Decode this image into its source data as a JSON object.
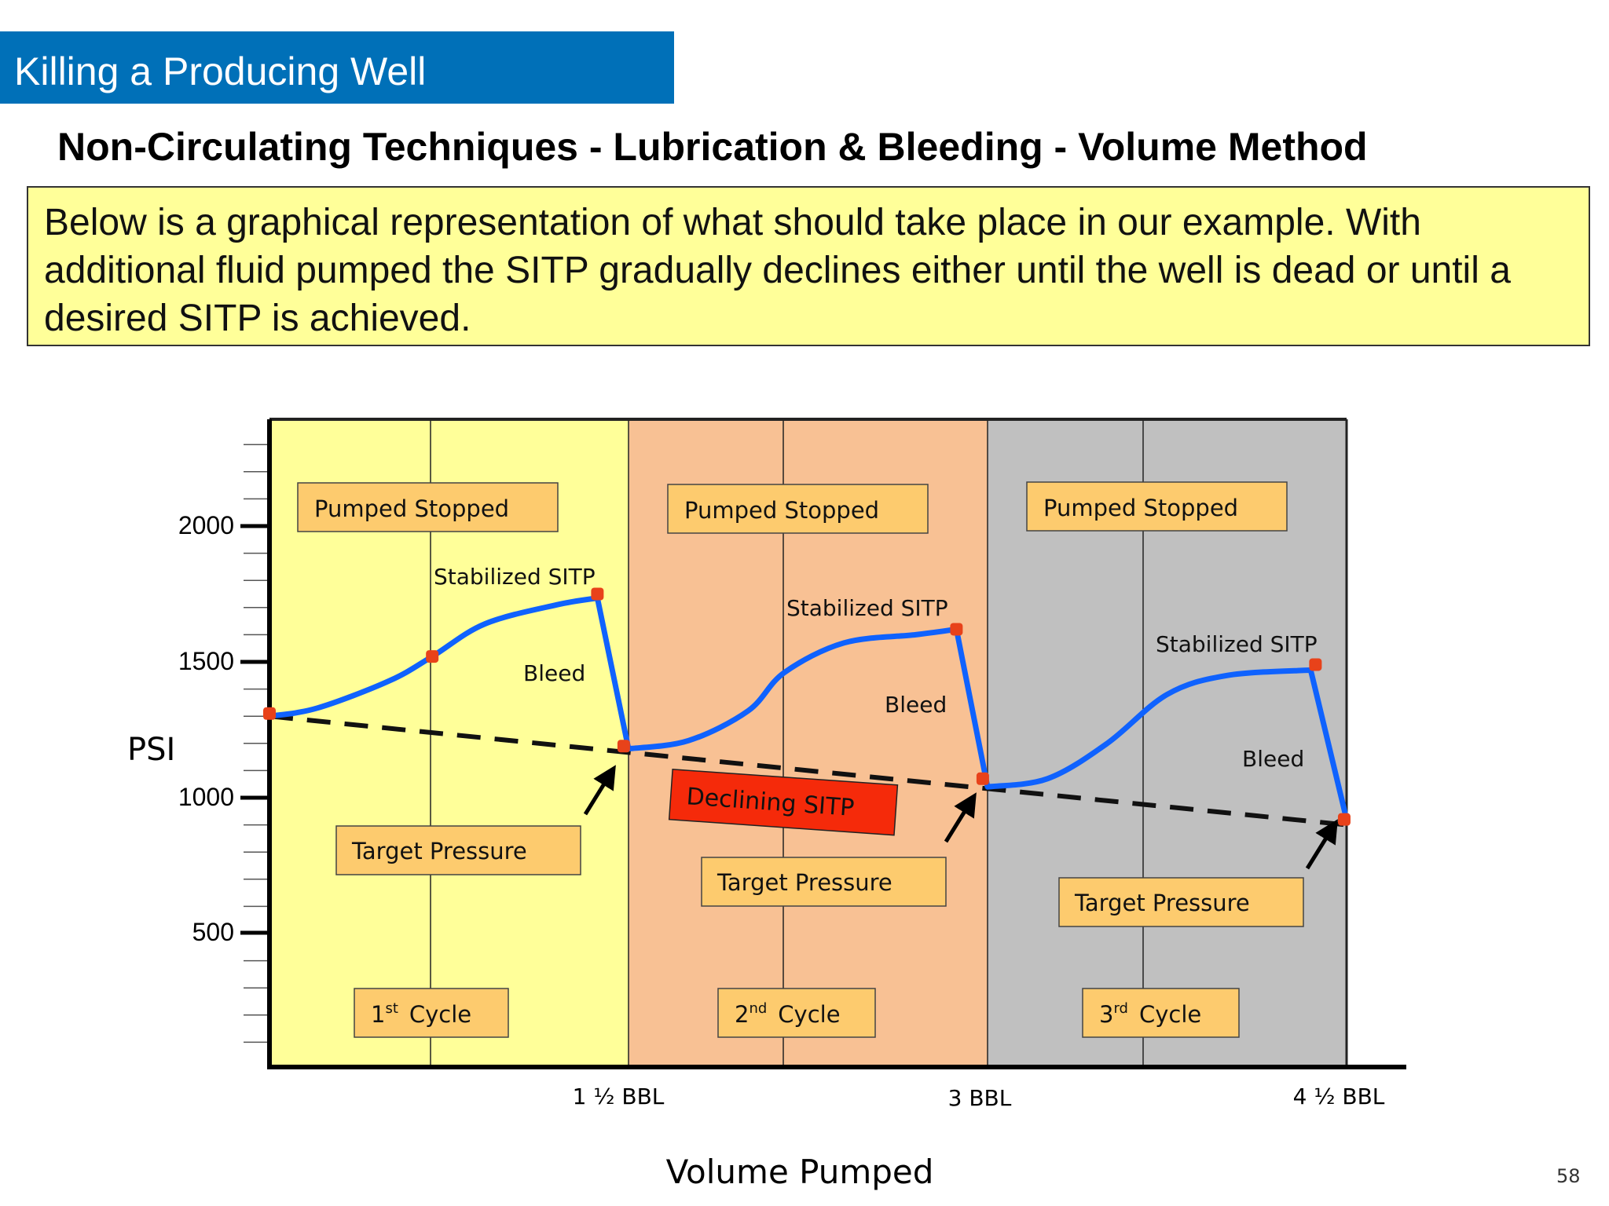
{
  "header": {
    "banner_title": "Killing a Producing Well",
    "subtitle": "Non-Circulating Techniques - Lubrication & Bleeding - Volume Method"
  },
  "intro_text": "Below is a graphical representation of what should take place in our example. With additional fluid pumped the SITP gradually declines either until the well is dead or until a desired SITP is achieved.",
  "colors": {
    "banner": "#0070b8",
    "intro_bg": "#ffff99",
    "cycle1_bg": "#ffff99",
    "cycle2_bg": "#f8c194",
    "cycle3_bg": "#c0c0c0",
    "label_bg": "#fdcb6e",
    "curve": "#0f62fe",
    "marker": "#e8421a",
    "declining_bg": "#f52a0a"
  },
  "chart_data": {
    "type": "line",
    "ylabel": "PSI",
    "xlabel": "Volume Pumped",
    "yticks": [
      2000,
      1500,
      1000,
      500
    ],
    "xticks": [
      "1 ½  BBL",
      "3  BBL",
      "4 ½  BBL"
    ],
    "ylim": [
      0,
      2400
    ],
    "xlim": [
      0,
      4.5
    ],
    "series": [
      {
        "type": "curve",
        "x": [
          0,
          0.2,
          0.5,
          0.68,
          0.9,
          1.2,
          1.37,
          1.5,
          1.75,
          2.0,
          2.15,
          2.4,
          2.7,
          2.87,
          3.0,
          3.25,
          3.5,
          3.75,
          4.0,
          4.35,
          4.5
        ],
        "y": [
          1300,
          1330,
          1430,
          1520,
          1640,
          1710,
          1735,
          1180,
          1210,
          1320,
          1460,
          1570,
          1600,
          1620,
          1040,
          1070,
          1200,
          1380,
          1450,
          1470,
          920
        ]
      },
      {
        "type": "dashed",
        "x": [
          0,
          4.5
        ],
        "y": [
          1300,
          900
        ]
      }
    ],
    "markers": [
      {
        "x": 0,
        "y": 1310
      },
      {
        "x": 0.68,
        "y": 1520
      },
      {
        "x": 1.37,
        "y": 1750
      },
      {
        "x": 1.48,
        "y": 1190
      },
      {
        "x": 2.87,
        "y": 1620
      },
      {
        "x": 2.98,
        "y": 1070
      },
      {
        "x": 4.37,
        "y": 1490
      },
      {
        "x": 4.49,
        "y": 920
      }
    ],
    "cycles": [
      {
        "label_base": "1",
        "label_sup": "st",
        "label_rest": "Cycle",
        "pumped_stopped": "Pumped Stopped",
        "stabilized": "Stabilized SITP",
        "bleed": "Bleed",
        "target": "Target Pressure"
      },
      {
        "label_base": "2",
        "label_sup": "nd",
        "label_rest": "Cycle",
        "pumped_stopped": "Pumped Stopped",
        "stabilized": "Stabilized SITP",
        "bleed": "Bleed",
        "target": "Target Pressure"
      },
      {
        "label_base": "3",
        "label_sup": "rd",
        "label_rest": "Cycle",
        "pumped_stopped": "Pumped Stopped",
        "stabilized": "Stabilized SITP",
        "bleed": "Bleed",
        "target": "Target Pressure"
      }
    ],
    "annotation": "Declining SITP"
  },
  "page_number": "58"
}
